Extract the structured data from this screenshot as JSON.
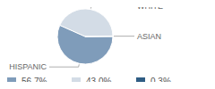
{
  "chart_data": {
    "type": "pie",
    "categories": [
      "HISPANIC",
      "WHITE",
      "ASIAN"
    ],
    "values": [
      56.7,
      43.0,
      0.3
    ],
    "value_labels": [
      "56.7%",
      "43.0%",
      "0.3%"
    ],
    "colors": [
      "#7f9cba",
      "#d3dce6",
      "#2f5d84"
    ],
    "legend": "bottom"
  }
}
